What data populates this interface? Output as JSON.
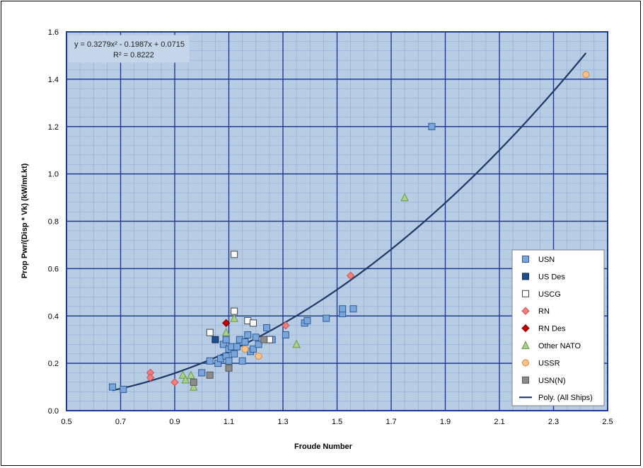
{
  "chart_data": {
    "type": "scatter",
    "title": "",
    "xlabel": "Froude Number",
    "ylabel": "Prop Pwr/(Disp * Vk) (kW/mt.kt)",
    "xlim": [
      0.5,
      2.5
    ],
    "ylim": [
      0.0,
      1.6
    ],
    "x_ticks": [
      "0.5",
      "0.7",
      "0.9",
      "1.1",
      "1.3",
      "1.5",
      "1.7",
      "1.9",
      "2.1",
      "2.3",
      "2.5"
    ],
    "y_ticks": [
      "0.0",
      "0.2",
      "0.4",
      "0.6",
      "0.8",
      "1.0",
      "1.2",
      "1.4",
      "1.6"
    ],
    "grid": true,
    "legend_position": "right",
    "trendline": {
      "name": "Poly. (All Ships)",
      "equation": "y = 0.3279x² - 0.1987x + 0.0715",
      "r2_label": "R² = 0.8222",
      "coefficients": [
        0.3279,
        -0.1987,
        0.0715
      ],
      "x_range": [
        0.67,
        2.42
      ],
      "color": "#1f3864"
    },
    "series": [
      {
        "name": "USN",
        "marker": "square",
        "fill": "#7aa6dc",
        "stroke": "#2e5a94",
        "points": [
          [
            0.67,
            0.1
          ],
          [
            0.71,
            0.09
          ],
          [
            1.0,
            0.16
          ],
          [
            1.03,
            0.21
          ],
          [
            1.06,
            0.2
          ],
          [
            1.07,
            0.22
          ],
          [
            1.09,
            0.23
          ],
          [
            1.08,
            0.28
          ],
          [
            1.09,
            0.3
          ],
          [
            1.1,
            0.21
          ],
          [
            1.1,
            0.26
          ],
          [
            1.11,
            0.27
          ],
          [
            1.12,
            0.24
          ],
          [
            1.13,
            0.27
          ],
          [
            1.14,
            0.3
          ],
          [
            1.15,
            0.21
          ],
          [
            1.16,
            0.29
          ],
          [
            1.17,
            0.32
          ],
          [
            1.18,
            0.25
          ],
          [
            1.19,
            0.26
          ],
          [
            1.2,
            0.31
          ],
          [
            1.21,
            0.28
          ],
          [
            1.24,
            0.35
          ],
          [
            1.26,
            0.3
          ],
          [
            1.31,
            0.32
          ],
          [
            1.38,
            0.37
          ],
          [
            1.39,
            0.38
          ],
          [
            1.46,
            0.39
          ],
          [
            1.52,
            0.41
          ],
          [
            1.52,
            0.43
          ],
          [
            1.56,
            0.43
          ],
          [
            1.85,
            1.2
          ]
        ]
      },
      {
        "name": "US Des",
        "marker": "square",
        "fill": "#1f4e8c",
        "stroke": "#10305a",
        "points": [
          [
            1.05,
            0.3
          ]
        ]
      },
      {
        "name": "USCG",
        "marker": "square",
        "fill": "#ffffff",
        "stroke": "#444444",
        "points": [
          [
            1.03,
            0.33
          ],
          [
            1.12,
            0.42
          ],
          [
            1.12,
            0.66
          ],
          [
            1.17,
            0.38
          ],
          [
            1.19,
            0.37
          ],
          [
            1.25,
            0.3
          ]
        ]
      },
      {
        "name": "RN",
        "marker": "diamond",
        "fill": "#f08080",
        "stroke": "#d05050",
        "points": [
          [
            0.81,
            0.16
          ],
          [
            0.81,
            0.14
          ],
          [
            0.9,
            0.12
          ],
          [
            1.31,
            0.36
          ],
          [
            1.55,
            0.57
          ]
        ]
      },
      {
        "name": "RN Des",
        "marker": "diamond",
        "fill": "#c00000",
        "stroke": "#800000",
        "points": [
          [
            1.09,
            0.37
          ]
        ]
      },
      {
        "name": "Other NATO",
        "marker": "triangle",
        "fill": "#a9d18e",
        "stroke": "#6a9a4a",
        "points": [
          [
            0.93,
            0.15
          ],
          [
            0.94,
            0.13
          ],
          [
            0.96,
            0.15
          ],
          [
            0.97,
            0.1
          ],
          [
            1.09,
            0.33
          ],
          [
            1.12,
            0.39
          ],
          [
            1.35,
            0.28
          ],
          [
            1.75,
            0.9
          ]
        ]
      },
      {
        "name": "USSR",
        "marker": "circle",
        "fill": "#fbc28c",
        "stroke": "#d08a40",
        "points": [
          [
            1.16,
            0.26
          ],
          [
            1.21,
            0.23
          ],
          [
            2.42,
            1.42
          ]
        ]
      },
      {
        "name": "USN(N)",
        "marker": "square",
        "fill": "#8c8c8c",
        "stroke": "#555555",
        "points": [
          [
            0.97,
            0.12
          ],
          [
            1.03,
            0.15
          ],
          [
            1.1,
            0.18
          ],
          [
            1.23,
            0.3
          ]
        ]
      }
    ]
  },
  "colors": {
    "plot_bg": "#b8cce4",
    "major_grid": "#1f3a93",
    "minor_grid": "#8ea9db",
    "trend_line": "#1f3864"
  }
}
